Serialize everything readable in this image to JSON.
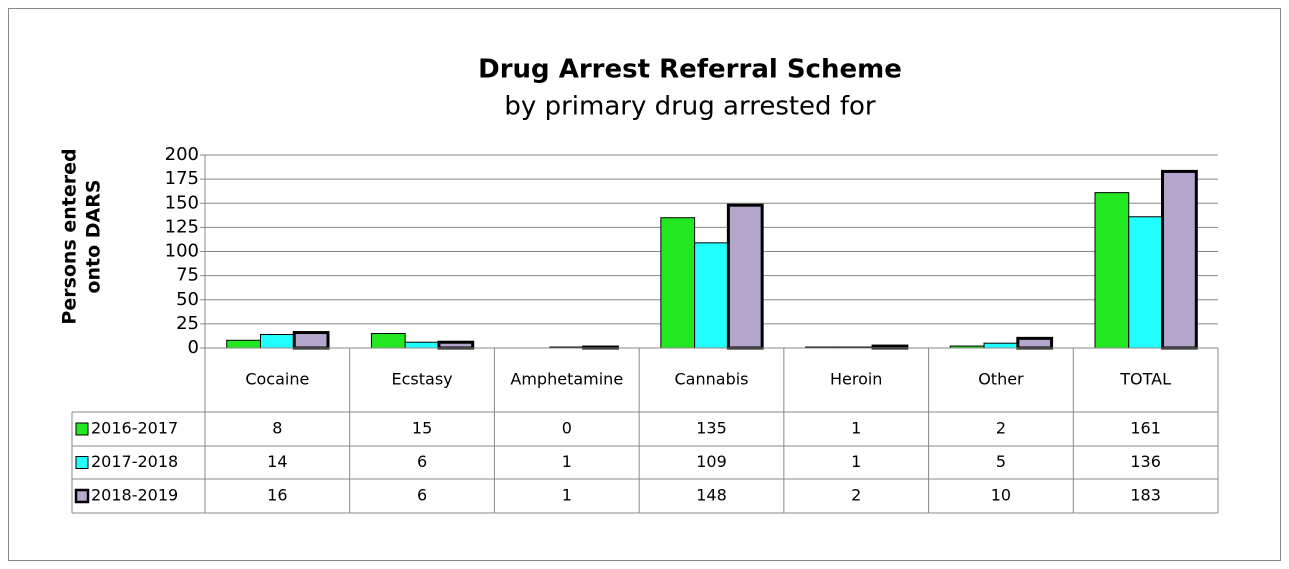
{
  "chart_data": {
    "type": "bar",
    "title": "Drug Arrest Referral  Scheme",
    "subtitle": "by primary drug arrested for",
    "ylabel_lines": [
      "Persons entered",
      "onto DARS"
    ],
    "categories": [
      "Cocaine",
      "Ecstasy",
      "Amphetamine",
      "Cannabis",
      "Heroin",
      "Other",
      "TOTAL"
    ],
    "series": [
      {
        "name": "2016-2017",
        "color": "#22e822",
        "values": [
          8,
          15,
          0,
          135,
          1,
          2,
          161
        ]
      },
      {
        "name": "2017-2018",
        "color": "#22ffff",
        "values": [
          14,
          6,
          1,
          109,
          1,
          5,
          136
        ]
      },
      {
        "name": "2018-2019",
        "color": "#b4a6cc",
        "values": [
          16,
          6,
          1,
          148,
          2,
          10,
          183
        ]
      }
    ],
    "ylim": [
      0,
      200
    ],
    "yticks": [
      0,
      25,
      50,
      75,
      100,
      125,
      150,
      175,
      200
    ],
    "grid": true,
    "data_table": true
  }
}
